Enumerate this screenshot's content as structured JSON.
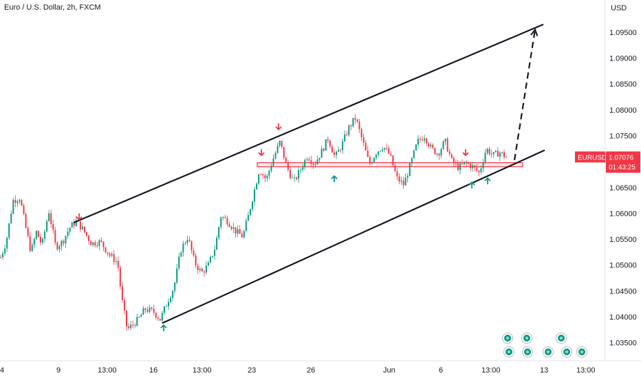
{
  "header": {
    "title": "Euro / U.S. Dollar, 2h, FXCM"
  },
  "chart_data": {
    "type": "candlestick",
    "title": "Euro / U.S. Dollar, 2h, FXCM",
    "symbol": "EURUSD",
    "currency_label": "USD",
    "y_ticks": [
      "1.09500",
      "1.09000",
      "1.08500",
      "1.08000",
      "1.07500",
      "1.07000",
      "1.06500",
      "1.06000",
      "1.05500",
      "1.05000",
      "1.04500",
      "1.04000",
      "1.03500"
    ],
    "x_ticks": [
      "4",
      "9",
      "13:00",
      "16",
      "13:00",
      "23",
      "26",
      "Jun",
      "6",
      "13:00",
      "13",
      "13:00"
    ],
    "ylim": [
      1.0335,
      1.0975
    ],
    "last_price": {
      "value": "1.07076",
      "countdown": "01:43:25"
    },
    "colors": {
      "up": "#089981",
      "down": "#f23645",
      "line": "#131722",
      "zone": "#f23645",
      "tag": "#f23645"
    },
    "price_path": [
      [
        0,
        1.0515
      ],
      [
        8,
        1.0545
      ],
      [
        18,
        1.0625
      ],
      [
        28,
        1.063
      ],
      [
        36,
        1.0575
      ],
      [
        44,
        1.0525
      ],
      [
        52,
        1.0565
      ],
      [
        60,
        1.0538
      ],
      [
        70,
        1.0605
      ],
      [
        80,
        1.0535
      ],
      [
        90,
        1.0545
      ],
      [
        100,
        1.0572
      ],
      [
        110,
        1.0585
      ],
      [
        120,
        1.0568
      ],
      [
        132,
        1.0542
      ],
      [
        145,
        1.0545
      ],
      [
        158,
        1.052
      ],
      [
        170,
        1.0505
      ],
      [
        176,
        1.0435
      ],
      [
        184,
        1.0375
      ],
      [
        192,
        1.0385
      ],
      [
        200,
        1.0395
      ],
      [
        210,
        1.0415
      ],
      [
        222,
        1.041
      ],
      [
        232,
        1.0395
      ],
      [
        242,
        1.0428
      ],
      [
        252,
        1.0458
      ],
      [
        262,
        1.053
      ],
      [
        272,
        1.0555
      ],
      [
        282,
        1.0505
      ],
      [
        292,
        1.0485
      ],
      [
        302,
        1.05
      ],
      [
        312,
        1.0535
      ],
      [
        320,
        1.0595
      ],
      [
        330,
        1.0585
      ],
      [
        342,
        1.0565
      ],
      [
        352,
        1.0555
      ],
      [
        360,
        1.0595
      ],
      [
        368,
        1.064
      ],
      [
        376,
        1.0685
      ],
      [
        386,
        1.0665
      ],
      [
        396,
        1.0705
      ],
      [
        406,
        1.0738
      ],
      [
        416,
        1.069
      ],
      [
        426,
        1.066
      ],
      [
        436,
        1.0685
      ],
      [
        446,
        1.0712
      ],
      [
        456,
        1.0695
      ],
      [
        466,
        1.0718
      ],
      [
        476,
        1.0745
      ],
      [
        486,
        1.0708
      ],
      [
        496,
        1.0732
      ],
      [
        506,
        1.0765
      ],
      [
        516,
        1.0785
      ],
      [
        526,
        1.074
      ],
      [
        536,
        1.0695
      ],
      [
        546,
        1.0718
      ],
      [
        556,
        1.073
      ],
      [
        566,
        1.0712
      ],
      [
        576,
        1.0668
      ],
      [
        586,
        1.0655
      ],
      [
        596,
        1.0695
      ],
      [
        606,
        1.0738
      ],
      [
        616,
        1.075
      ],
      [
        626,
        1.0725
      ],
      [
        636,
        1.0715
      ],
      [
        646,
        1.074
      ],
      [
        656,
        1.07
      ],
      [
        666,
        1.0688
      ],
      [
        676,
        1.0698
      ],
      [
        686,
        1.069
      ],
      [
        696,
        1.0678
      ],
      [
        706,
        1.0725
      ],
      [
        716,
        1.0712
      ],
      [
        726,
        1.0718
      ],
      [
        736,
        1.0707
      ]
    ],
    "lines": [
      {
        "name": "upper-channel",
        "x1": 107,
        "y1": 1.0582,
        "x2": 790,
        "y2": 1.0965
      },
      {
        "name": "lower-channel",
        "x1": 236,
        "y1": 1.0388,
        "x2": 792,
        "y2": 1.0722
      }
    ],
    "projection": {
      "x1": 748,
      "y1": 1.0703,
      "x2": 778,
      "y2": 1.0955
    },
    "zone": {
      "x1": 374,
      "x2": 760,
      "top": 1.0698,
      "bottom": 1.069
    },
    "markers": [
      {
        "type": "down",
        "x": 115,
        "y": 1.0588
      },
      {
        "type": "down",
        "x": 380,
        "y": 1.0712
      },
      {
        "type": "down",
        "x": 405,
        "y": 1.0762
      },
      {
        "type": "down",
        "x": 677,
        "y": 1.0712
      },
      {
        "type": "up",
        "x": 238,
        "y": 1.0384
      },
      {
        "type": "up",
        "x": 486,
        "y": 1.0672
      },
      {
        "type": "up",
        "x": 686,
        "y": 1.066
      },
      {
        "type": "up",
        "x": 709,
        "y": 1.0668
      }
    ],
    "event_icons": [
      {
        "x": 738,
        "row": 1
      },
      {
        "x": 766,
        "row": 1
      },
      {
        "x": 816,
        "row": 1
      },
      {
        "x": 740,
        "row": 2
      },
      {
        "x": 767,
        "row": 2
      },
      {
        "x": 797,
        "row": 2
      },
      {
        "x": 824,
        "row": 2
      },
      {
        "x": 846,
        "row": 2
      }
    ]
  }
}
